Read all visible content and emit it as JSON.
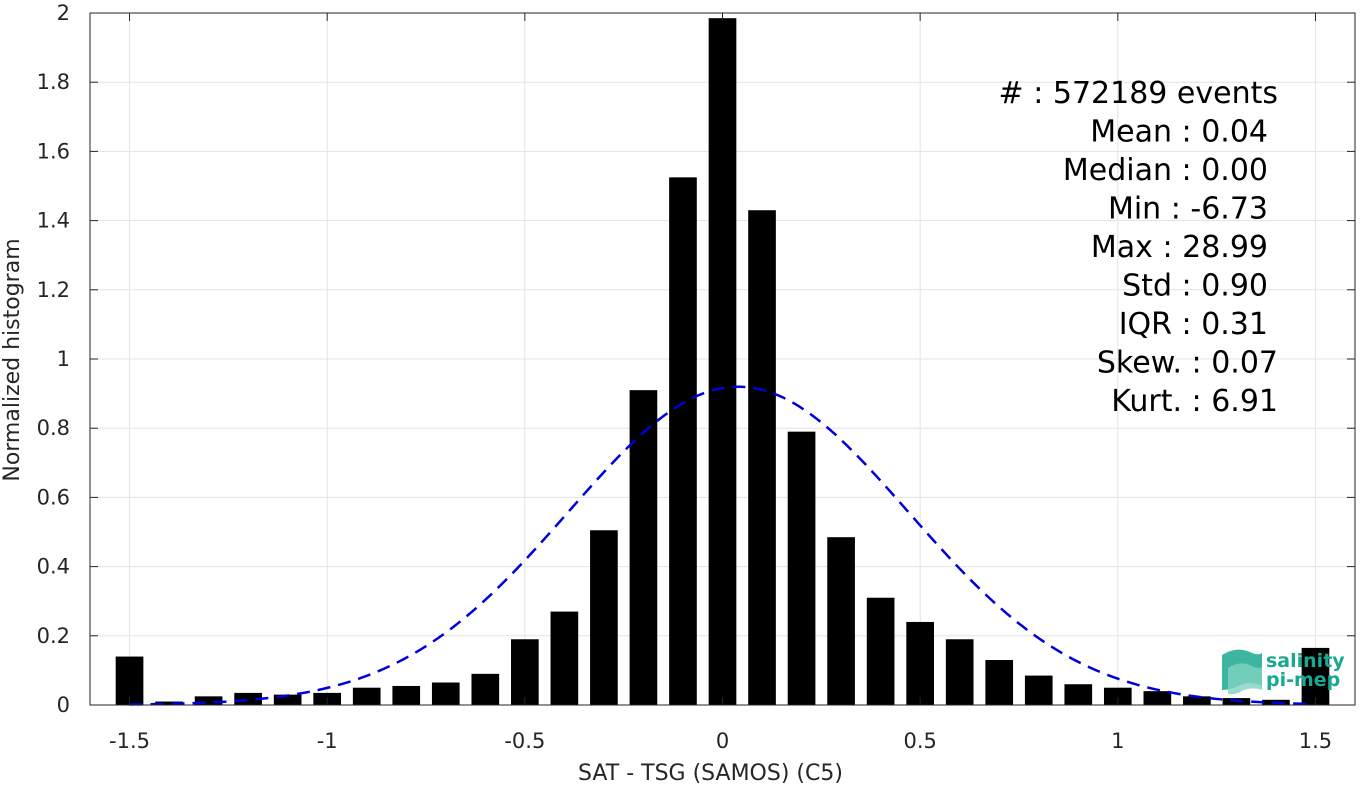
{
  "chart_data": {
    "type": "bar",
    "title": "",
    "xlabel": "SAT - TSG (SAMOS) (C5)",
    "ylabel": "Normalized histogram",
    "xlim": [
      -1.6,
      1.6
    ],
    "ylim": [
      0,
      2
    ],
    "xticks": [
      -1.5,
      -1,
      -0.5,
      0,
      0.5,
      1,
      1.5
    ],
    "xtick_labels": [
      "-1.5",
      "-1",
      "-0.5",
      "0",
      "0.5",
      "1",
      "1.5"
    ],
    "yticks": [
      0,
      0.2,
      0.4,
      0.6,
      0.8,
      1,
      1.2,
      1.4,
      1.6,
      1.8,
      2
    ],
    "ytick_labels": [
      "0",
      "0.2",
      "0.4",
      "0.6",
      "0.8",
      "1",
      "1.2",
      "1.4",
      "1.6",
      "1.8",
      "2"
    ],
    "grid": true,
    "bar_color": "#000000",
    "bar_width": 0.07,
    "bins": [
      {
        "x": -1.5,
        "y": 0.14
      },
      {
        "x": -1.4,
        "y": 0.01
      },
      {
        "x": -1.3,
        "y": 0.025
      },
      {
        "x": -1.2,
        "y": 0.035
      },
      {
        "x": -1.1,
        "y": 0.03
      },
      {
        "x": -1.0,
        "y": 0.035
      },
      {
        "x": -0.9,
        "y": 0.05
      },
      {
        "x": -0.8,
        "y": 0.055
      },
      {
        "x": -0.7,
        "y": 0.065
      },
      {
        "x": -0.6,
        "y": 0.09
      },
      {
        "x": -0.5,
        "y": 0.19
      },
      {
        "x": -0.4,
        "y": 0.27
      },
      {
        "x": -0.3,
        "y": 0.505
      },
      {
        "x": -0.2,
        "y": 0.91
      },
      {
        "x": -0.1,
        "y": 1.525
      },
      {
        "x": 0.0,
        "y": 1.985
      },
      {
        "x": 0.1,
        "y": 1.43
      },
      {
        "x": 0.2,
        "y": 0.79
      },
      {
        "x": 0.3,
        "y": 0.485
      },
      {
        "x": 0.4,
        "y": 0.31
      },
      {
        "x": 0.5,
        "y": 0.24
      },
      {
        "x": 0.6,
        "y": 0.19
      },
      {
        "x": 0.7,
        "y": 0.13
      },
      {
        "x": 0.8,
        "y": 0.085
      },
      {
        "x": 0.9,
        "y": 0.06
      },
      {
        "x": 1.0,
        "y": 0.05
      },
      {
        "x": 1.1,
        "y": 0.04
      },
      {
        "x": 1.2,
        "y": 0.025
      },
      {
        "x": 1.3,
        "y": 0.02
      },
      {
        "x": 1.4,
        "y": 0.015
      },
      {
        "x": 1.5,
        "y": 0.165
      }
    ],
    "fit_curve": {
      "type": "gaussian",
      "mean": 0.04,
      "std": 0.43,
      "peak": 0.92,
      "x_range": [
        -1.5,
        1.5
      ],
      "color": "#0000dd",
      "style": "dashed"
    },
    "stats": [
      "#  : 572189 events",
      "Mean : 0.04",
      "Median : 0.00",
      "Min : -6.73",
      "Max : 28.99",
      "Std : 0.90",
      "IQR : 0.31",
      "Skew. : 0.07",
      "Kurt. : 6.91"
    ]
  },
  "logo": {
    "line1": "salinity",
    "line2": "pi-mep",
    "color": "#1aa890"
  }
}
